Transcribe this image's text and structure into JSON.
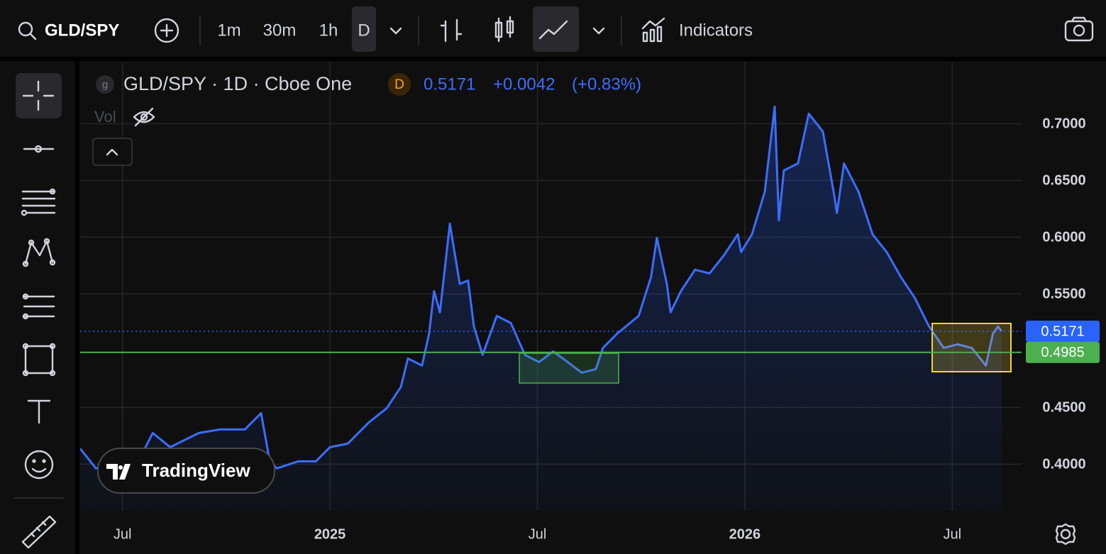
{
  "toolbar": {
    "symbol": "GLD/SPY",
    "intervals": [
      "1m",
      "30m",
      "1h",
      "D"
    ],
    "indicators": "Indicators"
  },
  "legend": {
    "symbol_icon": "g",
    "title": "GLD/SPY · 1D · Cboe One",
    "badge": "D",
    "last": "0.5171",
    "change": "+0.0042",
    "change_pct": "(+0.83%)",
    "volume": "Vol"
  },
  "watermark": "TradingView",
  "chart_data": {
    "type": "area",
    "color": "#3d6dff",
    "x": [
      2024.398,
      2024.436,
      2024.487,
      2024.547,
      2024.573,
      2024.615,
      2024.684,
      2024.735,
      2024.795,
      2024.834,
      2024.855,
      2024.872,
      2024.923,
      2024.966,
      2025.0,
      2025.043,
      2025.094,
      2025.137,
      2025.171,
      2025.188,
      2025.222,
      2025.239,
      2025.251,
      2025.265,
      2025.289,
      2025.313,
      2025.333,
      2025.347,
      2025.368,
      2025.402,
      2025.436,
      2025.47,
      2025.504,
      2025.538,
      2025.573,
      2025.607,
      2025.641,
      2025.658,
      2025.692,
      2025.744,
      2025.774,
      2025.788,
      2025.812,
      2025.821,
      2025.846,
      2025.88,
      2025.915,
      2025.949,
      2025.983,
      2025.991,
      2026.017,
      2026.048,
      2026.072,
      2026.082,
      2026.094,
      2026.128,
      2026.154,
      2026.188,
      2026.214,
      2026.222,
      2026.239,
      2026.274,
      2026.308,
      2026.342,
      2026.376,
      2026.41,
      2026.444,
      2026.479,
      2026.513,
      2026.547,
      2026.581,
      2026.598,
      2026.61,
      2026.619
    ],
    "values": [
      0.4138,
      0.3963,
      0.4025,
      0.4088,
      0.4275,
      0.415,
      0.4275,
      0.4306,
      0.4306,
      0.445,
      0.4025,
      0.3963,
      0.4025,
      0.4025,
      0.415,
      0.4181,
      0.4369,
      0.4494,
      0.4681,
      0.4931,
      0.4869,
      0.515,
      0.5525,
      0.5338,
      0.6119,
      0.5588,
      0.5619,
      0.5213,
      0.4963,
      0.5306,
      0.5244,
      0.4963,
      0.49,
      0.4994,
      0.49,
      0.4806,
      0.4838,
      0.5025,
      0.515,
      0.5306,
      0.565,
      0.5994,
      0.5588,
      0.5338,
      0.5525,
      0.5713,
      0.5681,
      0.5838,
      0.6025,
      0.5869,
      0.6025,
      0.64,
      0.715,
      0.615,
      0.6588,
      0.665,
      0.7088,
      0.6931,
      0.64,
      0.6213,
      0.665,
      0.64,
      0.6025,
      0.5869,
      0.565,
      0.5463,
      0.5213,
      0.5025,
      0.5056,
      0.5025,
      0.4869,
      0.515,
      0.5213,
      0.5171
    ],
    "xlim": [
      2024.398,
      2026.667
    ],
    "ylim": [
      0.359,
      0.754
    ],
    "xticks": [
      {
        "value": 2024.5,
        "label": "Jul"
      },
      2025,
      {
        "value": 2025.5,
        "label": "Jul"
      },
      2026,
      {
        "value": 2026.5,
        "label": "Jul"
      }
    ],
    "yticks": [
      {
        "value": 0.7,
        "label": "0.7000"
      },
      {
        "value": 0.65,
        "label": "0.6500"
      },
      {
        "value": 0.6,
        "label": "0.6000"
      },
      {
        "value": 0.55,
        "label": "0.5500"
      },
      {
        "value": 0.45,
        "label": "0.4500"
      },
      {
        "value": 0.4,
        "label": "0.4000"
      }
    ],
    "grid": true,
    "price_line": {
      "value": 0.5171,
      "label": "0.5171",
      "color": "#2962ff"
    },
    "horizontal_line": {
      "value": 0.4985,
      "label": "0.4985",
      "color": "#4caf50"
    }
  }
}
